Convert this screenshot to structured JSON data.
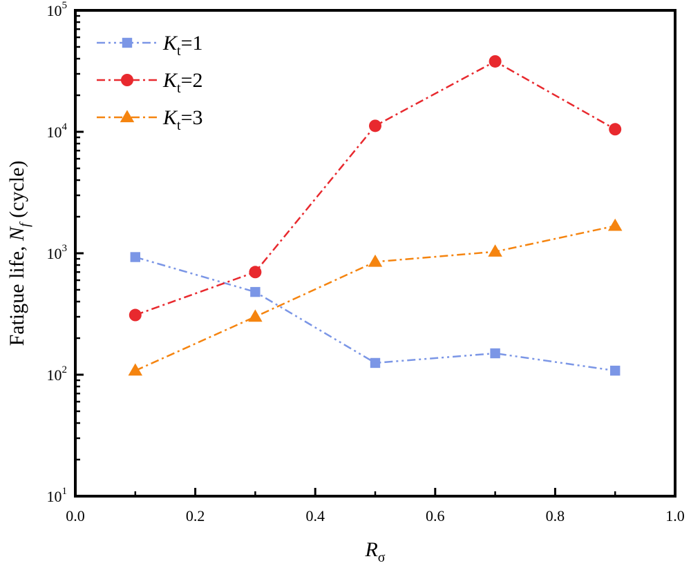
{
  "chart_data": {
    "type": "line",
    "title": "",
    "xlabel": {
      "main": "R",
      "sub": "σ"
    },
    "ylabel": {
      "prefix": "Fatigue life, ",
      "var": "N",
      "sub": "f",
      "suffix": " (cycle)"
    },
    "x_scale": "linear",
    "y_scale": "log",
    "xlim": [
      0.0,
      1.0
    ],
    "ylim": [
      10,
      100000
    ],
    "x_ticks": [
      0.0,
      0.2,
      0.4,
      0.6,
      0.8,
      1.0
    ],
    "x_tick_labels": [
      "0.0",
      "0.2",
      "0.4",
      "0.6",
      "0.8",
      "1.0"
    ],
    "y_ticks": [
      10,
      100,
      1000,
      10000,
      100000
    ],
    "y_tick_labels": [
      {
        "base": "10",
        "exp": "1"
      },
      {
        "base": "10",
        "exp": "2"
      },
      {
        "base": "10",
        "exp": "3"
      },
      {
        "base": "10",
        "exp": "4"
      },
      {
        "base": "10",
        "exp": "5"
      }
    ],
    "grid": false,
    "legend_position": "top-left",
    "x": [
      0.1,
      0.3,
      0.5,
      0.7,
      0.9
    ],
    "series": [
      {
        "name": {
          "var": "K",
          "sub": "t",
          "rest": "=1"
        },
        "marker": "square",
        "line_style": "dash-dot-dot",
        "color": "#7b96e6",
        "values": [
          930,
          480,
          125,
          150,
          108
        ]
      },
      {
        "name": {
          "var": "K",
          "sub": "t",
          "rest": "=2"
        },
        "marker": "circle",
        "line_style": "dash-dot",
        "color": "#e8292e",
        "values": [
          310,
          700,
          11200,
          38000,
          10500
        ]
      },
      {
        "name": {
          "var": "K",
          "sub": "t",
          "rest": "=3"
        },
        "marker": "triangle",
        "line_style": "dash-dot",
        "color": "#f5840f",
        "values": [
          108,
          300,
          850,
          1030,
          1680
        ]
      }
    ]
  }
}
